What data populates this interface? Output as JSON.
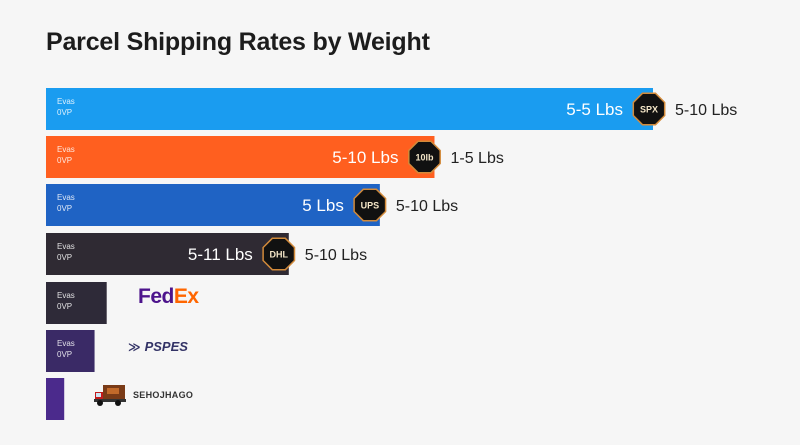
{
  "page": {
    "title": "Parcel Shipping Rates by Weight"
  },
  "chart_data": {
    "type": "bar",
    "orientation": "horizontal",
    "title": "Parcel Shipping Rates by Weight",
    "xlim": [
      0,
      100
    ],
    "grid": false,
    "legend": "none",
    "bars": [
      {
        "value": 100,
        "color": "#1a9cf0",
        "inner_label": "5-5 Lbs",
        "badge_text": "SPX",
        "outer_label": "5-10 Lbs",
        "axis_label": [
          "Evas",
          "0VP"
        ]
      },
      {
        "value": 64,
        "color": "#ff5f1f",
        "inner_label": "5-10 Lbs",
        "badge_text": "10lb",
        "outer_label": "1-5 Lbs",
        "axis_label": [
          "Evas",
          "0VP"
        ]
      },
      {
        "value": 55,
        "color": "#1f63c4",
        "inner_label": "5 Lbs",
        "badge_text": "UPS",
        "outer_label": "5-10 Lbs",
        "axis_label": [
          "Evas",
          "0VP"
        ]
      },
      {
        "value": 40,
        "color": "#2f2a33",
        "inner_label": "5-11 Lbs",
        "badge_text": "DHL",
        "outer_label": "5-10 Lbs",
        "axis_label": [
          "Evas",
          "0VP"
        ]
      },
      {
        "value": 10,
        "color": "#2e2a38",
        "inner_label": "",
        "badge_text": "",
        "outer_label": "",
        "axis_label": [
          "Evas",
          "0VP"
        ]
      },
      {
        "value": 8,
        "color": "#3a2a66",
        "inner_label": "",
        "badge_text": "",
        "outer_label": "",
        "axis_label": [
          "Evas",
          "0VP"
        ]
      },
      {
        "value": 3,
        "color": "#4b2a8c",
        "inner_label": "",
        "badge_text": "",
        "outer_label": "",
        "axis_label": []
      }
    ]
  },
  "logos": {
    "fedex": {
      "part1": "Fed",
      "part2": "Ex"
    },
    "usps": {
      "mark": "≫",
      "text": "PSPES"
    },
    "other": {
      "text": "SEHOJHAGO"
    }
  }
}
